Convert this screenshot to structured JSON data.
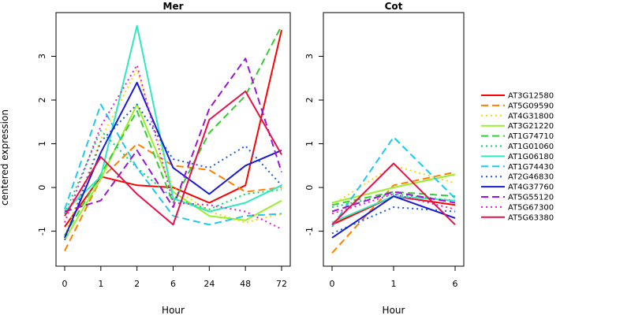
{
  "chart_data": {
    "type": "line",
    "ylabel": "centered expression",
    "legend_position": "right",
    "grid": false,
    "panels": [
      {
        "title": "Mer",
        "xlabel": "Hour",
        "categories": [
          "0",
          "1",
          "2",
          "6",
          "24",
          "48",
          "72"
        ],
        "ylim": [
          -1.8,
          4.0
        ],
        "yticks": [
          -1,
          0,
          1,
          2,
          3
        ],
        "series": [
          {
            "name": "AT3G12580",
            "values": [
              -0.9,
              0.25,
              0.05,
              0.0,
              -0.35,
              0.05,
              3.6
            ]
          },
          {
            "name": "AT5G09590",
            "values": [
              -1.45,
              0.2,
              1.0,
              0.5,
              0.4,
              -0.1,
              0.0
            ]
          },
          {
            "name": "AT4G31800",
            "values": [
              -1.1,
              1.1,
              2.7,
              0.0,
              -0.55,
              -0.8,
              -0.6
            ]
          },
          {
            "name": "AT3G21220",
            "values": [
              -1.2,
              0.2,
              1.9,
              -0.1,
              -0.65,
              -0.75,
              -0.3
            ]
          },
          {
            "name": "AT1G74710",
            "values": [
              -1.1,
              0.3,
              1.75,
              -0.35,
              1.25,
              2.1,
              3.7
            ]
          },
          {
            "name": "AT1G01060",
            "values": [
              -0.6,
              1.3,
              0.45,
              -0.25,
              -0.5,
              -0.15,
              -0.05
            ]
          },
          {
            "name": "AT1G06180",
            "values": [
              -0.55,
              0.25,
              3.7,
              -0.25,
              -0.55,
              -0.35,
              0.05
            ]
          },
          {
            "name": "AT1G74430",
            "values": [
              -0.5,
              1.9,
              0.45,
              -0.65,
              -0.85,
              -0.65,
              -0.6
            ]
          },
          {
            "name": "AT2G46830",
            "values": [
              -1.2,
              1.05,
              1.9,
              0.65,
              0.45,
              0.95,
              0.05
            ]
          },
          {
            "name": "AT4G37760",
            "values": [
              -1.15,
              0.8,
              2.4,
              0.45,
              -0.15,
              0.5,
              0.85
            ]
          },
          {
            "name": "AT5G55120",
            "values": [
              -0.55,
              -0.3,
              0.85,
              -0.45,
              1.8,
              2.95,
              0.35
            ]
          },
          {
            "name": "AT5G67300",
            "values": [
              -0.8,
              1.4,
              2.8,
              -0.35,
              -0.4,
              -0.55,
              -0.95
            ]
          },
          {
            "name": "AT5G63380",
            "values": [
              -0.65,
              0.7,
              -0.15,
              -0.85,
              1.55,
              2.2,
              0.75
            ]
          }
        ]
      },
      {
        "title": "Cot",
        "xlabel": "Hour",
        "categories": [
          "0",
          "1",
          "6"
        ],
        "ylim": [
          -1.8,
          4.0
        ],
        "yticks": [
          -1,
          0,
          1,
          2,
          3
        ],
        "series": [
          {
            "name": "AT3G12580",
            "values": [
              -0.85,
              -0.2,
              -0.4
            ]
          },
          {
            "name": "AT5G09590",
            "values": [
              -1.5,
              0.05,
              0.35
            ]
          },
          {
            "name": "AT4G31800",
            "values": [
              -0.4,
              0.5,
              0.1
            ]
          },
          {
            "name": "AT3G21220",
            "values": [
              -0.35,
              0.0,
              0.3
            ]
          },
          {
            "name": "AT1G74710",
            "values": [
              -0.4,
              -0.1,
              -0.2
            ]
          },
          {
            "name": "AT1G01060",
            "values": [
              -0.45,
              -0.15,
              -0.3
            ]
          },
          {
            "name": "AT1G06180",
            "values": [
              -0.8,
              -0.2,
              -0.3
            ]
          },
          {
            "name": "AT1G74430",
            "values": [
              -0.9,
              1.15,
              -0.25
            ]
          },
          {
            "name": "AT2G46830",
            "values": [
              -1.05,
              -0.45,
              -0.55
            ]
          },
          {
            "name": "AT4G37760",
            "values": [
              -1.15,
              -0.2,
              -0.7
            ]
          },
          {
            "name": "AT5G55120",
            "values": [
              -0.55,
              -0.1,
              -0.35
            ]
          },
          {
            "name": "AT5G67300",
            "values": [
              -0.6,
              -0.15,
              -0.5
            ]
          },
          {
            "name": "AT5G63380",
            "values": [
              -0.85,
              0.55,
              -0.85
            ]
          }
        ]
      }
    ],
    "legend": [
      {
        "name": "AT3G12580",
        "color": "#ff0000",
        "dash": "solid"
      },
      {
        "name": "AT5G09590",
        "color": "#ff7f00",
        "dash": "dashed"
      },
      {
        "name": "AT4G31800",
        "color": "#ffd700",
        "dash": "dotted"
      },
      {
        "name": "AT3G21220",
        "color": "#9aef2a",
        "dash": "solid"
      },
      {
        "name": "AT1G74710",
        "color": "#32cd32",
        "dash": "dashed"
      },
      {
        "name": "AT1G01060",
        "color": "#00d96a",
        "dash": "dotted"
      },
      {
        "name": "AT1G06180",
        "color": "#2fe8c0",
        "dash": "solid"
      },
      {
        "name": "AT1G74430",
        "color": "#1ec8f0",
        "dash": "dashed"
      },
      {
        "name": "AT2G46830",
        "color": "#1a5ce6",
        "dash": "dotted"
      },
      {
        "name": "AT4G37760",
        "color": "#1a1ad6",
        "dash": "solid"
      },
      {
        "name": "AT5G55120",
        "color": "#9a14d8",
        "dash": "dashed"
      },
      {
        "name": "AT5G67300",
        "color": "#e61ed6",
        "dash": "dotted"
      },
      {
        "name": "AT5G63380",
        "color": "#e8104a",
        "dash": "solid"
      }
    ]
  }
}
